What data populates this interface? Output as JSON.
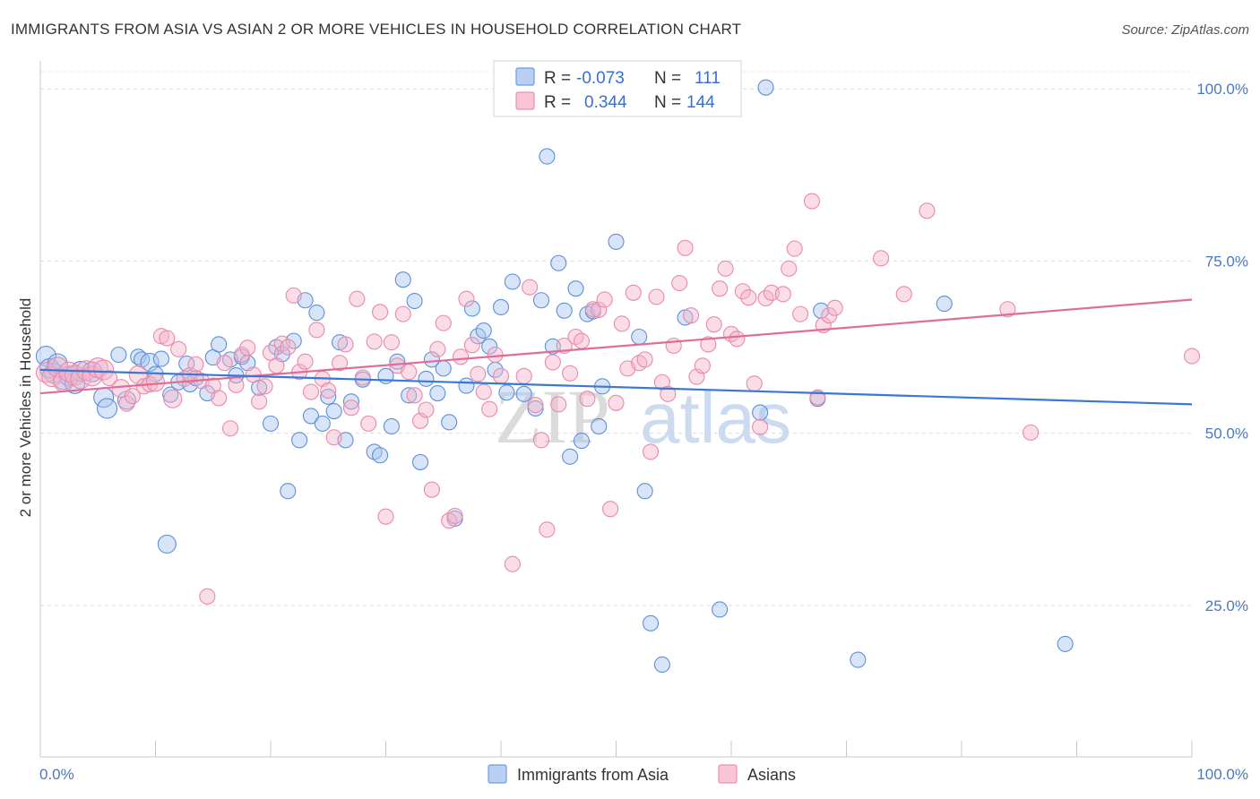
{
  "header": {
    "title": "IMMIGRANTS FROM ASIA VS ASIAN 2 OR MORE VEHICLES IN HOUSEHOLD CORRELATION CHART",
    "source": "Source: ZipAtlas.com"
  },
  "watermark": {
    "zip": "ZIP",
    "atlas": "atlas"
  },
  "legend": {
    "r_label": "R =",
    "n_label": "N =",
    "entries": [
      {
        "r": "-0.073",
        "n": "111",
        "color": "#6f9be0"
      },
      {
        "r": "0.344",
        "n": "144",
        "color": "#ec8fb0"
      }
    ]
  },
  "bottom_legend": [
    {
      "label": "Immigrants from Asia",
      "color": "#6f9be0"
    },
    {
      "label": "Asians",
      "color": "#ec8fb0"
    }
  ],
  "chart_data": {
    "type": "scatter",
    "title": "IMMIGRANTS FROM ASIA VS ASIAN 2 OR MORE VEHICLES IN HOUSEHOLD CORRELATION CHART",
    "xlabel": "",
    "ylabel": "2 or more Vehicles in Household",
    "xlim": [
      0,
      100
    ],
    "ylim": [
      3,
      102.5
    ],
    "x_tick_labels": [
      "0.0%",
      "100.0%"
    ],
    "y_ticks": [
      25,
      50,
      75,
      100
    ],
    "y_tick_labels": [
      "25.0%",
      "50.0%",
      "75.0%",
      "100.0%"
    ],
    "grid": true,
    "legend_position": "top-center",
    "series": [
      {
        "name": "Immigrants from Asia",
        "color": "#6f9be0",
        "trend": {
          "x": [
            0,
            100
          ],
          "y": [
            59.2,
            54.2
          ]
        },
        "points": [
          [
            0.5,
            61.2
          ],
          [
            0.8,
            59.4
          ],
          [
            1.2,
            58.7
          ],
          [
            1.5,
            60.1
          ],
          [
            2.0,
            57.8
          ],
          [
            2.5,
            58.3
          ],
          [
            3.0,
            57.2
          ],
          [
            3.5,
            59.0
          ],
          [
            4.5,
            58.9
          ],
          [
            5.5,
            55.2
          ],
          [
            5.8,
            53.6
          ],
          [
            6.8,
            61.4
          ],
          [
            7.5,
            54.8
          ],
          [
            8.5,
            61.1
          ],
          [
            8.8,
            60.7
          ],
          [
            9.5,
            60.3
          ],
          [
            10.0,
            58.6
          ],
          [
            10.5,
            60.8
          ],
          [
            11.0,
            33.9
          ],
          [
            11.3,
            55.6
          ],
          [
            12.0,
            57.4
          ],
          [
            12.7,
            60.1
          ],
          [
            13.0,
            57.1
          ],
          [
            13.5,
            58.0
          ],
          [
            14.5,
            55.8
          ],
          [
            15.0,
            61.0
          ],
          [
            15.5,
            62.9
          ],
          [
            16.5,
            60.7
          ],
          [
            17.0,
            58.4
          ],
          [
            17.5,
            61.1
          ],
          [
            18.0,
            60.2
          ],
          [
            19.0,
            56.6
          ],
          [
            20.0,
            51.4
          ],
          [
            20.5,
            62.5
          ],
          [
            21.0,
            61.5
          ],
          [
            21.5,
            41.6
          ],
          [
            22.0,
            63.4
          ],
          [
            22.5,
            49.0
          ],
          [
            23.0,
            69.3
          ],
          [
            23.5,
            52.5
          ],
          [
            24.0,
            67.5
          ],
          [
            24.5,
            51.4
          ],
          [
            25.0,
            55.3
          ],
          [
            25.5,
            53.2
          ],
          [
            26.0,
            63.2
          ],
          [
            26.5,
            49.0
          ],
          [
            27.0,
            54.6
          ],
          [
            28.0,
            57.8
          ],
          [
            29.0,
            47.3
          ],
          [
            29.5,
            46.8
          ],
          [
            30.0,
            58.3
          ],
          [
            30.5,
            51.0
          ],
          [
            31.0,
            60.4
          ],
          [
            31.5,
            72.3
          ],
          [
            32.0,
            55.5
          ],
          [
            32.5,
            69.2
          ],
          [
            33.0,
            45.8
          ],
          [
            33.5,
            57.9
          ],
          [
            34.0,
            60.7
          ],
          [
            34.5,
            55.8
          ],
          [
            35.0,
            59.4
          ],
          [
            35.5,
            51.6
          ],
          [
            36.0,
            37.6
          ],
          [
            37.0,
            56.9
          ],
          [
            37.5,
            68.1
          ],
          [
            38.0,
            64.1
          ],
          [
            38.5,
            64.9
          ],
          [
            39.0,
            62.6
          ],
          [
            39.5,
            59.2
          ],
          [
            40.0,
            68.3
          ],
          [
            40.5,
            55.9
          ],
          [
            41.0,
            72.0
          ],
          [
            42.0,
            55.7
          ],
          [
            43.0,
            53.6
          ],
          [
            43.5,
            69.3
          ],
          [
            44.0,
            90.2
          ],
          [
            44.5,
            62.6
          ],
          [
            45.0,
            74.7
          ],
          [
            45.5,
            67.8
          ],
          [
            46.0,
            46.6
          ],
          [
            46.5,
            71.0
          ],
          [
            47.0,
            48.9
          ],
          [
            47.5,
            67.3
          ],
          [
            48.0,
            67.7
          ],
          [
            48.5,
            51.0
          ],
          [
            48.8,
            56.8
          ],
          [
            50.0,
            77.8
          ],
          [
            52.0,
            64.0
          ],
          [
            52.5,
            41.6
          ],
          [
            53.0,
            22.4
          ],
          [
            53.5,
            100.2
          ],
          [
            54.0,
            16.4
          ],
          [
            56.0,
            66.8
          ],
          [
            59.0,
            24.4
          ],
          [
            62.5,
            53.0
          ],
          [
            63.0,
            100.2
          ],
          [
            67.5,
            55.0
          ],
          [
            67.8,
            67.8
          ],
          [
            71.0,
            17.1
          ],
          [
            78.5,
            68.8
          ],
          [
            89.0,
            19.4
          ]
        ]
      },
      {
        "name": "Asians",
        "color": "#ec8fb0",
        "trend": {
          "x": [
            0,
            100
          ],
          "y": [
            55.8,
            69.4
          ]
        },
        "points": [
          [
            0.5,
            58.8
          ],
          [
            1.0,
            58.2
          ],
          [
            1.5,
            59.6
          ],
          [
            2.0,
            57.5
          ],
          [
            2.5,
            58.9
          ],
          [
            3.0,
            58.4
          ],
          [
            3.5,
            57.9
          ],
          [
            4.0,
            59.1
          ],
          [
            4.5,
            58.3
          ],
          [
            5.0,
            59.5
          ],
          [
            5.5,
            59.2
          ],
          [
            6.0,
            58.0
          ],
          [
            7.0,
            56.5
          ],
          [
            7.5,
            54.3
          ],
          [
            8.0,
            55.4
          ],
          [
            8.5,
            58.5
          ],
          [
            9.0,
            56.8
          ],
          [
            9.5,
            57.1
          ],
          [
            10.0,
            57.4
          ],
          [
            10.5,
            64.1
          ],
          [
            11.0,
            63.8
          ],
          [
            11.5,
            55.0
          ],
          [
            12.0,
            62.2
          ],
          [
            12.5,
            57.9
          ],
          [
            13.0,
            58.4
          ],
          [
            13.5,
            60.0
          ],
          [
            14.0,
            57.6
          ],
          [
            14.5,
            26.3
          ],
          [
            15.0,
            56.9
          ],
          [
            15.5,
            55.1
          ],
          [
            16.0,
            60.2
          ],
          [
            16.5,
            50.7
          ],
          [
            17.0,
            57.0
          ],
          [
            17.5,
            61.4
          ],
          [
            18.0,
            62.4
          ],
          [
            18.5,
            58.5
          ],
          [
            19.0,
            54.6
          ],
          [
            19.5,
            56.8
          ],
          [
            20.0,
            61.7
          ],
          [
            20.5,
            59.8
          ],
          [
            21.0,
            63.0
          ],
          [
            21.5,
            62.5
          ],
          [
            22.0,
            70.0
          ],
          [
            22.5,
            58.9
          ],
          [
            23.0,
            60.4
          ],
          [
            23.5,
            56.0
          ],
          [
            24.0,
            65.0
          ],
          [
            24.5,
            57.9
          ],
          [
            25.0,
            56.2
          ],
          [
            25.5,
            49.4
          ],
          [
            26.0,
            60.2
          ],
          [
            26.5,
            62.9
          ],
          [
            27.0,
            53.7
          ],
          [
            27.5,
            69.5
          ],
          [
            28.0,
            58.1
          ],
          [
            28.5,
            51.4
          ],
          [
            29.0,
            63.3
          ],
          [
            29.5,
            67.6
          ],
          [
            30.0,
            37.9
          ],
          [
            30.5,
            63.2
          ],
          [
            31.0,
            59.8
          ],
          [
            31.5,
            67.3
          ],
          [
            32.0,
            58.9
          ],
          [
            32.5,
            55.5
          ],
          [
            33.0,
            51.8
          ],
          [
            33.5,
            53.4
          ],
          [
            34.0,
            41.8
          ],
          [
            34.5,
            62.2
          ],
          [
            35.0,
            66.0
          ],
          [
            35.5,
            37.3
          ],
          [
            36.0,
            38.0
          ],
          [
            36.5,
            61.1
          ],
          [
            37.0,
            69.5
          ],
          [
            37.5,
            62.8
          ],
          [
            38.0,
            58.6
          ],
          [
            38.5,
            56.0
          ],
          [
            39.0,
            53.5
          ],
          [
            39.5,
            61.4
          ],
          [
            40.0,
            58.3
          ],
          [
            41.0,
            31.0
          ],
          [
            42.0,
            58.3
          ],
          [
            42.5,
            71.2
          ],
          [
            43.0,
            54.1
          ],
          [
            43.5,
            49.0
          ],
          [
            44.0,
            36.0
          ],
          [
            44.5,
            60.3
          ],
          [
            45.0,
            54.2
          ],
          [
            45.5,
            62.7
          ],
          [
            46.0,
            58.7
          ],
          [
            46.5,
            64.0
          ],
          [
            47.0,
            63.4
          ],
          [
            47.5,
            55.0
          ],
          [
            48.0,
            68.0
          ],
          [
            48.5,
            67.9
          ],
          [
            49.0,
            69.4
          ],
          [
            49.5,
            39.0
          ],
          [
            50.0,
            54.4
          ],
          [
            50.5,
            65.9
          ],
          [
            51.0,
            59.4
          ],
          [
            51.5,
            70.4
          ],
          [
            52.0,
            60.2
          ],
          [
            52.5,
            60.7
          ],
          [
            53.0,
            47.3
          ],
          [
            53.5,
            69.8
          ],
          [
            54.0,
            57.4
          ],
          [
            54.5,
            55.7
          ],
          [
            55.0,
            62.7
          ],
          [
            55.5,
            71.8
          ],
          [
            56.0,
            76.9
          ],
          [
            56.5,
            67.1
          ],
          [
            57.0,
            58.2
          ],
          [
            57.5,
            59.8
          ],
          [
            58.0,
            62.9
          ],
          [
            58.5,
            65.8
          ],
          [
            59.0,
            71.0
          ],
          [
            59.5,
            73.9
          ],
          [
            60.0,
            64.4
          ],
          [
            60.5,
            63.7
          ],
          [
            61.0,
            70.6
          ],
          [
            61.5,
            69.7
          ],
          [
            62.0,
            57.2
          ],
          [
            62.5,
            50.9
          ],
          [
            63.0,
            69.6
          ],
          [
            63.5,
            70.4
          ],
          [
            64.5,
            70.2
          ],
          [
            65.0,
            73.9
          ],
          [
            65.5,
            76.8
          ],
          [
            66.0,
            67.3
          ],
          [
            67.0,
            83.7
          ],
          [
            67.5,
            55.2
          ],
          [
            68.0,
            65.7
          ],
          [
            68.5,
            67.1
          ],
          [
            69.0,
            68.2
          ],
          [
            73.0,
            75.4
          ],
          [
            75.0,
            70.2
          ],
          [
            77.0,
            82.3
          ],
          [
            84.0,
            68.0
          ],
          [
            86.0,
            50.1
          ],
          [
            100.0,
            61.2
          ]
        ]
      }
    ]
  }
}
